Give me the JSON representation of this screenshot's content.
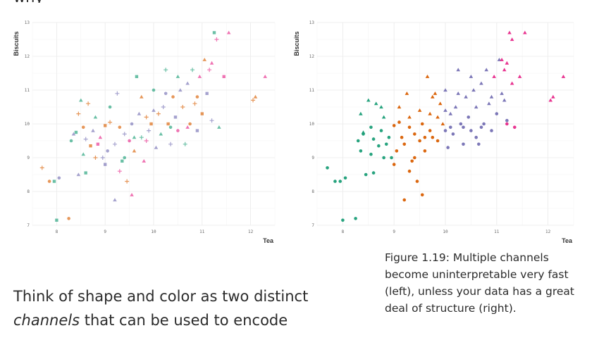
{
  "top_fragment": "why",
  "caption": "Figure 1.19: Multiple channels become uninterpretable very fast (left), unless your data has a great deal of structure (right).",
  "body_text": {
    "before": "Think of shape and color as two distinct ",
    "emphasis": "channels",
    "after": " that can be used to encode"
  },
  "colors": {
    "green": "#1b9e77",
    "orange": "#d95f02",
    "purple": "#7570b3",
    "pink": "#e7298a",
    "grid": "#ebebeb"
  },
  "chart_data": [
    {
      "type": "scatter",
      "panel": "left",
      "xlabel": "Tea",
      "ylabel": "Biscuits",
      "xlim": [
        7.5,
        12.5
      ],
      "ylim": [
        7,
        13
      ],
      "x_ticks": [
        8,
        9,
        10,
        11,
        12
      ],
      "y_ticks": [
        7,
        8,
        9,
        10,
        11,
        12,
        13
      ],
      "grid": true,
      "point_opacity": 0.65,
      "points": [
        [
          7.7,
          8.7,
          "orange",
          "plus"
        ],
        [
          7.85,
          8.3,
          "orange",
          "circle"
        ],
        [
          7.95,
          8.3,
          "green",
          "square"
        ],
        [
          8.0,
          7.15,
          "green",
          "square"
        ],
        [
          8.05,
          8.4,
          "purple",
          "circle"
        ],
        [
          8.25,
          7.2,
          "orange",
          "circle"
        ],
        [
          8.3,
          9.5,
          "green",
          "circle"
        ],
        [
          8.35,
          9.7,
          "purple",
          "triangle"
        ],
        [
          8.4,
          9.75,
          "green",
          "square"
        ],
        [
          8.45,
          10.3,
          "orange",
          "plus"
        ],
        [
          8.5,
          10.7,
          "green",
          "triangle"
        ],
        [
          8.55,
          9.1,
          "green",
          "triangle"
        ],
        [
          8.6,
          9.55,
          "purple",
          "plus"
        ],
        [
          8.65,
          10.6,
          "orange",
          "plus"
        ],
        [
          8.7,
          9.35,
          "orange",
          "square"
        ],
        [
          8.75,
          9.8,
          "purple",
          "triangle"
        ],
        [
          8.8,
          9.0,
          "orange",
          "plus"
        ],
        [
          8.8,
          10.2,
          "green",
          "triangle"
        ],
        [
          8.9,
          9.6,
          "pink",
          "triangle"
        ],
        [
          8.95,
          9.0,
          "purple",
          "plus"
        ],
        [
          9.0,
          9.95,
          "orange",
          "square"
        ],
        [
          9.05,
          9.2,
          "purple",
          "circle"
        ],
        [
          9.1,
          10.05,
          "orange",
          "plus"
        ],
        [
          9.1,
          10.5,
          "green",
          "circle"
        ],
        [
          9.2,
          9.4,
          "purple",
          "plus"
        ],
        [
          9.25,
          10.9,
          "purple",
          "plus"
        ],
        [
          9.3,
          9.9,
          "orange",
          "circle"
        ],
        [
          9.35,
          8.9,
          "green",
          "square"
        ],
        [
          9.4,
          9.7,
          "purple",
          "plus"
        ],
        [
          9.45,
          8.3,
          "orange",
          "plus"
        ],
        [
          9.5,
          9.5,
          "pink",
          "circle"
        ],
        [
          9.55,
          10.0,
          "purple",
          "circle"
        ],
        [
          9.6,
          9.2,
          "orange",
          "triangle"
        ],
        [
          9.65,
          11.4,
          "green",
          "square"
        ],
        [
          9.7,
          10.3,
          "purple",
          "triangle"
        ],
        [
          9.75,
          9.6,
          "green",
          "plus"
        ],
        [
          9.8,
          8.9,
          "pink",
          "triangle"
        ],
        [
          9.85,
          10.2,
          "orange",
          "plus"
        ],
        [
          9.9,
          9.8,
          "purple",
          "plus"
        ],
        [
          9.95,
          10.0,
          "orange",
          "square"
        ],
        [
          10.0,
          11.0,
          "green",
          "circle"
        ],
        [
          10.05,
          9.3,
          "purple",
          "triangle"
        ],
        [
          10.1,
          10.3,
          "orange",
          "plus"
        ],
        [
          10.15,
          9.7,
          "green",
          "triangle"
        ],
        [
          10.2,
          10.5,
          "purple",
          "plus"
        ],
        [
          10.25,
          11.6,
          "green",
          "plus"
        ],
        [
          10.3,
          10.0,
          "orange",
          "square"
        ],
        [
          10.35,
          9.4,
          "purple",
          "plus"
        ],
        [
          10.4,
          10.8,
          "orange",
          "circle"
        ],
        [
          10.45,
          10.2,
          "purple",
          "square"
        ],
        [
          10.5,
          9.8,
          "pink",
          "circle"
        ],
        [
          10.55,
          11.0,
          "purple",
          "triangle"
        ],
        [
          10.6,
          10.5,
          "orange",
          "plus"
        ],
        [
          10.65,
          9.4,
          "green",
          "plus"
        ],
        [
          10.7,
          11.2,
          "purple",
          "triangle"
        ],
        [
          10.75,
          10.0,
          "orange",
          "circle"
        ],
        [
          10.8,
          11.6,
          "green",
          "plus"
        ],
        [
          10.85,
          10.6,
          "orange",
          "plus"
        ],
        [
          10.9,
          9.8,
          "purple",
          "square"
        ],
        [
          10.95,
          11.4,
          "pink",
          "triangle"
        ],
        [
          11.0,
          10.3,
          "orange",
          "square"
        ],
        [
          11.05,
          11.9,
          "orange",
          "triangle"
        ],
        [
          11.1,
          10.9,
          "purple",
          "square"
        ],
        [
          11.15,
          11.6,
          "pink",
          "plus"
        ],
        [
          11.2,
          10.1,
          "purple",
          "plus"
        ],
        [
          11.25,
          12.7,
          "green",
          "square"
        ],
        [
          11.3,
          12.5,
          "pink",
          "plus"
        ],
        [
          11.35,
          9.9,
          "green",
          "triangle"
        ],
        [
          11.45,
          11.4,
          "pink",
          "square"
        ],
        [
          11.55,
          12.7,
          "pink",
          "triangle"
        ],
        [
          12.1,
          10.8,
          "orange",
          "triangle"
        ],
        [
          12.05,
          10.7,
          "orange",
          "plus"
        ],
        [
          12.3,
          11.4,
          "pink",
          "triangle"
        ],
        [
          9.2,
          7.75,
          "purple",
          "triangle"
        ],
        [
          9.55,
          7.9,
          "pink",
          "triangle"
        ],
        [
          8.45,
          8.5,
          "purple",
          "triangle"
        ],
        [
          8.6,
          8.55,
          "green",
          "square"
        ],
        [
          9.3,
          8.6,
          "pink",
          "plus"
        ],
        [
          9.0,
          8.8,
          "purple",
          "square"
        ],
        [
          9.75,
          10.8,
          "orange",
          "triangle"
        ],
        [
          10.5,
          11.4,
          "green",
          "triangle"
        ],
        [
          10.35,
          9.9,
          "green",
          "circle"
        ],
        [
          9.6,
          9.6,
          "green",
          "triangle"
        ],
        [
          8.55,
          9.9,
          "orange",
          "circle"
        ],
        [
          10.9,
          10.8,
          "orange",
          "circle"
        ],
        [
          10.25,
          10.9,
          "purple",
          "circle"
        ],
        [
          9.85,
          9.5,
          "pink",
          "plus"
        ],
        [
          10.7,
          9.9,
          "pink",
          "triangle"
        ],
        [
          11.2,
          11.8,
          "pink",
          "triangle"
        ],
        [
          10.0,
          10.4,
          "purple",
          "triangle"
        ],
        [
          9.4,
          9.0,
          "green",
          "circle"
        ],
        [
          8.85,
          9.4,
          "pink",
          "square"
        ]
      ]
    },
    {
      "type": "scatter",
      "panel": "right",
      "xlabel": "Tea",
      "ylabel": "Biscuits",
      "xlim": [
        7.5,
        12.5
      ],
      "ylim": [
        7,
        13
      ],
      "x_ticks": [
        8,
        9,
        10,
        11,
        12
      ],
      "y_ticks": [
        7,
        8,
        9,
        10,
        11,
        12,
        13
      ],
      "grid": true,
      "point_opacity": 0.95,
      "series": [
        {
          "color": "green",
          "shape": "circle",
          "points": [
            [
              7.7,
              8.7
            ],
            [
              7.85,
              8.3
            ],
            [
              7.95,
              8.3
            ],
            [
              8.0,
              7.15
            ],
            [
              8.05,
              8.4
            ],
            [
              8.25,
              7.2
            ],
            [
              8.3,
              9.5
            ],
            [
              8.4,
              9.7
            ],
            [
              8.55,
              9.1
            ],
            [
              8.6,
              9.55
            ],
            [
              8.7,
              9.35
            ],
            [
              8.75,
              9.8
            ],
            [
              8.8,
              9.0
            ],
            [
              8.9,
              9.6
            ],
            [
              8.95,
              9.0
            ],
            [
              8.45,
              8.5
            ],
            [
              8.6,
              8.55
            ],
            [
              8.55,
              9.9
            ],
            [
              8.85,
              9.4
            ],
            [
              8.35,
              9.2
            ]
          ]
        },
        {
          "color": "green",
          "shape": "triangle",
          "points": [
            [
              8.35,
              10.3
            ],
            [
              8.5,
              10.7
            ],
            [
              8.65,
              10.6
            ],
            [
              8.8,
              10.2
            ],
            [
              8.75,
              10.5
            ],
            [
              8.4,
              9.75
            ]
          ]
        },
        {
          "color": "orange",
          "shape": "circle",
          "points": [
            [
              9.0,
              9.95
            ],
            [
              9.05,
              9.2
            ],
            [
              9.1,
              10.05
            ],
            [
              9.2,
              9.4
            ],
            [
              9.3,
              9.9
            ],
            [
              9.35,
              8.9
            ],
            [
              9.4,
              9.7
            ],
            [
              9.45,
              8.3
            ],
            [
              9.5,
              9.5
            ],
            [
              9.55,
              10.0
            ],
            [
              9.6,
              9.2
            ],
            [
              9.2,
              7.75
            ],
            [
              9.55,
              7.9
            ],
            [
              9.3,
              8.6
            ],
            [
              9.0,
              8.8
            ],
            [
              9.4,
              9.0
            ],
            [
              9.6,
              9.6
            ],
            [
              9.85,
              9.5
            ],
            [
              9.75,
              9.6
            ],
            [
              9.15,
              9.6
            ],
            [
              9.7,
              9.8
            ]
          ]
        },
        {
          "color": "orange",
          "shape": "triangle",
          "points": [
            [
              9.1,
              10.5
            ],
            [
              9.25,
              10.9
            ],
            [
              9.65,
              11.4
            ],
            [
              9.7,
              10.3
            ],
            [
              9.75,
              10.8
            ],
            [
              9.85,
              10.2
            ],
            [
              9.95,
              10.0
            ],
            [
              9.9,
              10.6
            ],
            [
              9.5,
              10.4
            ],
            [
              9.3,
              10.2
            ],
            [
              9.8,
              10.9
            ]
          ]
        },
        {
          "color": "purple",
          "shape": "circle",
          "points": [
            [
              10.0,
              9.8
            ],
            [
              10.05,
              9.3
            ],
            [
              10.15,
              9.7
            ],
            [
              10.35,
              9.4
            ],
            [
              10.3,
              10.0
            ],
            [
              10.45,
              10.2
            ],
            [
              10.5,
              9.8
            ],
            [
              10.65,
              9.4
            ],
            [
              10.75,
              10.0
            ],
            [
              10.9,
              9.8
            ],
            [
              11.0,
              10.3
            ],
            [
              11.2,
              10.1
            ],
            [
              10.35,
              9.9
            ],
            [
              10.7,
              9.9
            ],
            [
              10.1,
              9.9
            ],
            [
              10.6,
              9.6
            ]
          ]
        },
        {
          "color": "purple",
          "shape": "triangle",
          "points": [
            [
              10.0,
              11.0
            ],
            [
              10.1,
              10.3
            ],
            [
              10.2,
              10.5
            ],
            [
              10.25,
              11.6
            ],
            [
              10.4,
              10.8
            ],
            [
              10.55,
              11.0
            ],
            [
              10.6,
              10.5
            ],
            [
              10.7,
              11.2
            ],
            [
              10.8,
              11.6
            ],
            [
              10.85,
              10.6
            ],
            [
              11.05,
              11.9
            ],
            [
              11.1,
              10.9
            ],
            [
              10.5,
              11.4
            ],
            [
              10.25,
              10.9
            ],
            [
              10.0,
              10.4
            ],
            [
              10.9,
              10.8
            ],
            [
              11.15,
              10.7
            ]
          ]
        },
        {
          "color": "pink",
          "shape": "circle",
          "points": [
            [
              11.35,
              9.9
            ],
            [
              11.2,
              10.0
            ]
          ]
        },
        {
          "color": "pink",
          "shape": "triangle",
          "points": [
            [
              10.95,
              11.4
            ],
            [
              11.15,
              11.6
            ],
            [
              11.25,
              12.7
            ],
            [
              11.3,
              12.5
            ],
            [
              11.45,
              11.4
            ],
            [
              11.55,
              12.7
            ],
            [
              12.1,
              10.8
            ],
            [
              12.05,
              10.7
            ],
            [
              12.3,
              11.4
            ],
            [
              11.2,
              11.8
            ],
            [
              11.3,
              11.2
            ],
            [
              11.1,
              11.9
            ]
          ]
        }
      ]
    }
  ]
}
